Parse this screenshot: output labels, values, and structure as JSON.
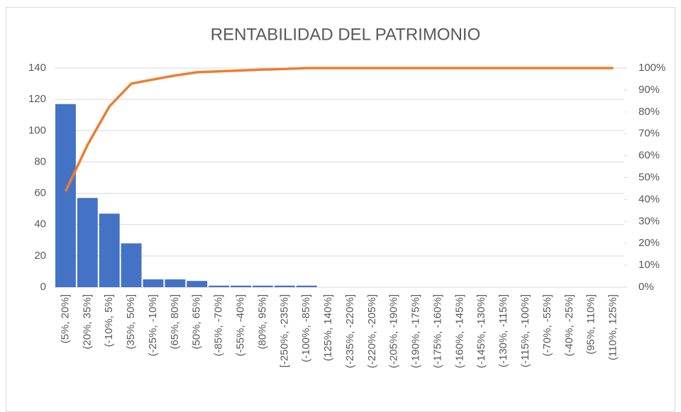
{
  "chart_data": {
    "type": "pareto",
    "title": "RENTABILIDAD DEL PATRIMONIO",
    "categories": [
      "(5%, 20%]",
      "(20%, 35%]",
      "(-10%, 5%]",
      "(35%, 50%]",
      "(-25%, -10%]",
      "(65%, 80%]",
      "(50%, 65%]",
      "(-85%, -70%]",
      "(-55%, -40%]",
      "(80%, 95%]",
      "[-250%, -235%]",
      "(-100%, -85%]",
      "(125%, 140%]",
      "(-235%, -220%]",
      "(-220%, -205%]",
      "(-205%, -190%]",
      "(-190%, -175%]",
      "(-175%, -160%]",
      "(-160%, -145%]",
      "(-145%, -130%]",
      "(-130%, -115%]",
      "(-115%, -100%]",
      "(-70%, -55%]",
      "(-40%, -25%]",
      "(95%, 110%]",
      "(110%, 125%]"
    ],
    "series": [
      {
        "color": "#4472c4",
        "values": [
          117,
          57,
          47,
          28,
          5,
          5,
          4,
          1,
          1,
          1,
          1,
          1,
          0,
          0,
          0,
          0,
          0,
          0,
          0,
          0,
          0,
          0,
          0,
          0,
          0,
          0
        ]
      },
      {
        "color": "#ed7d31",
        "axis": "y2",
        "values": [
          43.7,
          64.9,
          82.5,
          92.9,
          94.8,
          96.6,
          98.1,
          98.5,
          98.9,
          99.3,
          99.6,
          100,
          100,
          100,
          100,
          100,
          100,
          100,
          100,
          100,
          100,
          100,
          100,
          100,
          100,
          100
        ]
      }
    ],
    "ylim": [
      0,
      140
    ],
    "yticks": [
      0,
      20,
      40,
      60,
      80,
      100,
      120,
      140
    ],
    "y2lim": [
      0,
      100
    ],
    "y2ticks": [
      {
        "value": 0,
        "label": "0%"
      },
      {
        "value": 10,
        "label": "10%"
      },
      {
        "value": 20,
        "label": "20%"
      },
      {
        "value": 30,
        "label": "30%"
      },
      {
        "value": 40,
        "label": "40%"
      },
      {
        "value": 50,
        "label": "50%"
      },
      {
        "value": 60,
        "label": "60%"
      },
      {
        "value": 70,
        "label": "70%"
      },
      {
        "value": 80,
        "label": "80%"
      },
      {
        "value": 90,
        "label": "90%"
      },
      {
        "value": 100,
        "label": "100%"
      }
    ],
    "grid": true
  }
}
